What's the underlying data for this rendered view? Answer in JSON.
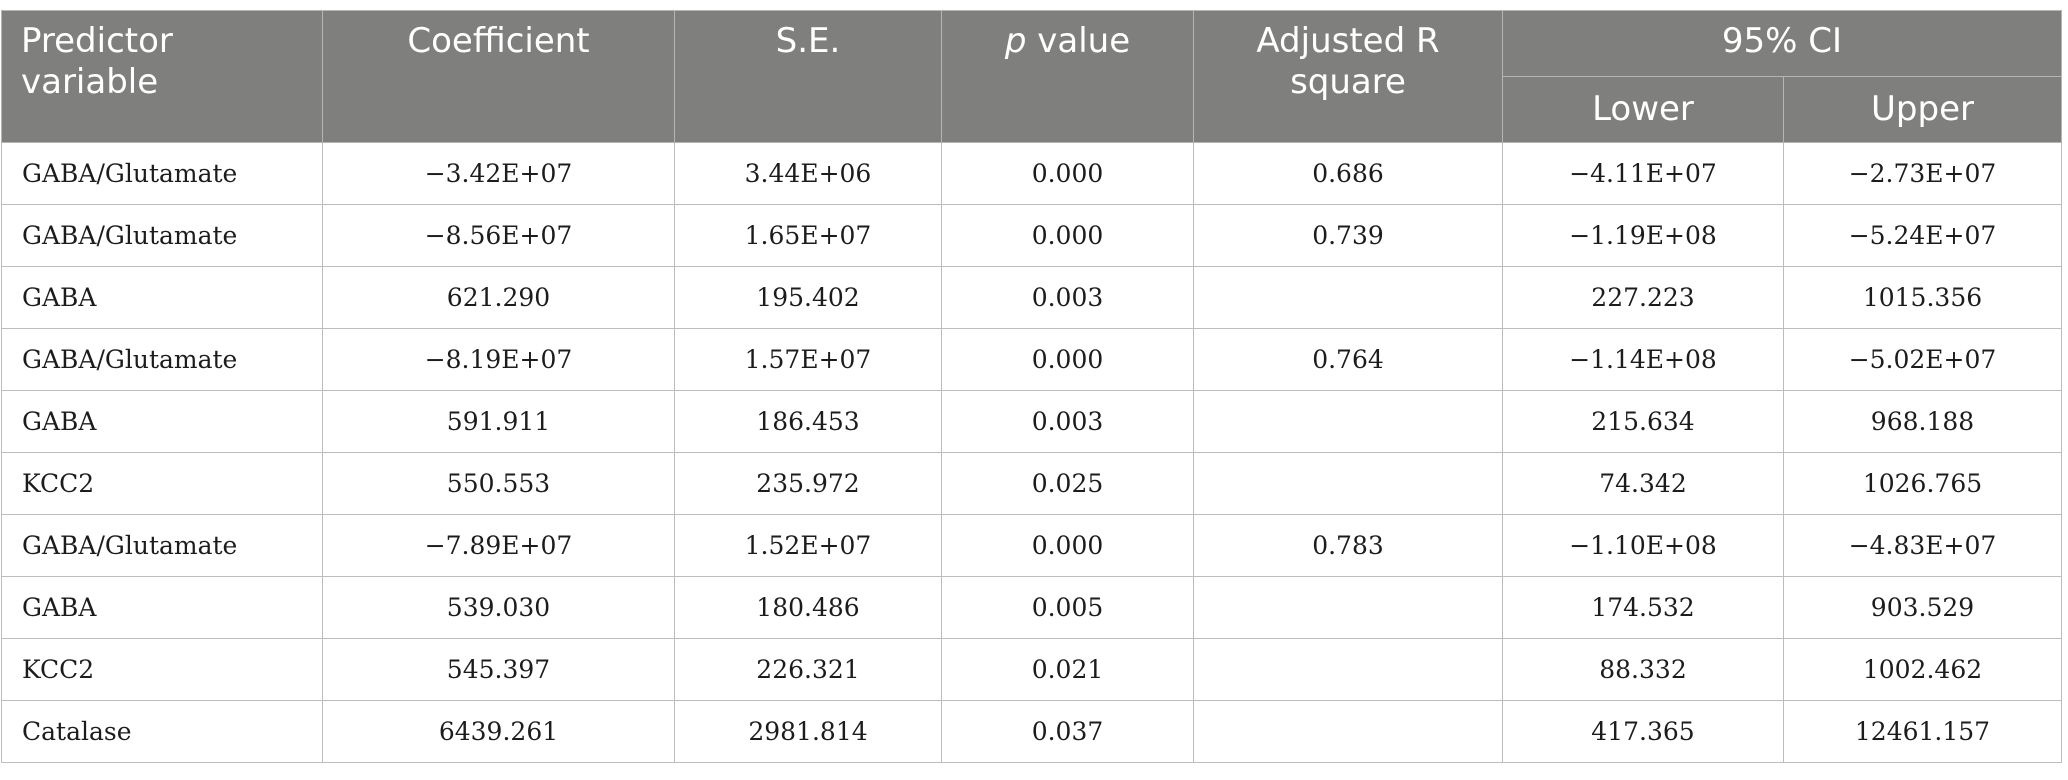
{
  "table": {
    "headers": {
      "predictor": "Predictor variable",
      "coefficient": "Coefficient",
      "se": "S.E.",
      "p_italic": "p",
      "p_rest": " value",
      "adj_r2": "Adjusted R square",
      "ci": "95% CI",
      "lower": "Lower",
      "upper": "Upper"
    },
    "rows": [
      {
        "predictor": "GABA/Glutamate",
        "coefficient": "−3.42E+07",
        "se": "3.44E+06",
        "p": "0.000",
        "adj_r2": "0.686",
        "lower": "−4.11E+07",
        "upper": "−2.73E+07"
      },
      {
        "predictor": "GABA/Glutamate",
        "coefficient": "−8.56E+07",
        "se": "1.65E+07",
        "p": "0.000",
        "adj_r2": "0.739",
        "lower": "−1.19E+08",
        "upper": "−5.24E+07"
      },
      {
        "predictor": "GABA",
        "coefficient": "621.290",
        "se": "195.402",
        "p": "0.003",
        "adj_r2": "",
        "lower": "227.223",
        "upper": "1015.356"
      },
      {
        "predictor": "GABA/Glutamate",
        "coefficient": "−8.19E+07",
        "se": "1.57E+07",
        "p": "0.000",
        "adj_r2": "0.764",
        "lower": "−1.14E+08",
        "upper": "−5.02E+07"
      },
      {
        "predictor": "GABA",
        "coefficient": "591.911",
        "se": "186.453",
        "p": "0.003",
        "adj_r2": "",
        "lower": "215.634",
        "upper": "968.188"
      },
      {
        "predictor": "KCC2",
        "coefficient": "550.553",
        "se": "235.972",
        "p": "0.025",
        "adj_r2": "",
        "lower": "74.342",
        "upper": "1026.765"
      },
      {
        "predictor": "GABA/Glutamate",
        "coefficient": "−7.89E+07",
        "se": "1.52E+07",
        "p": "0.000",
        "adj_r2": "0.783",
        "lower": "−1.10E+08",
        "upper": "−4.83E+07"
      },
      {
        "predictor": "GABA",
        "coefficient": "539.030",
        "se": "180.486",
        "p": "0.005",
        "adj_r2": "",
        "lower": "174.532",
        "upper": "903.529"
      },
      {
        "predictor": "KCC2",
        "coefficient": "545.397",
        "se": "226.321",
        "p": "0.021",
        "adj_r2": "",
        "lower": "88.332",
        "upper": "1002.462"
      },
      {
        "predictor": "Catalase",
        "coefficient": "6439.261",
        "se": "2981.814",
        "p": "0.037",
        "adj_r2": "",
        "lower": "417.365",
        "upper": "12461.157"
      }
    ]
  }
}
